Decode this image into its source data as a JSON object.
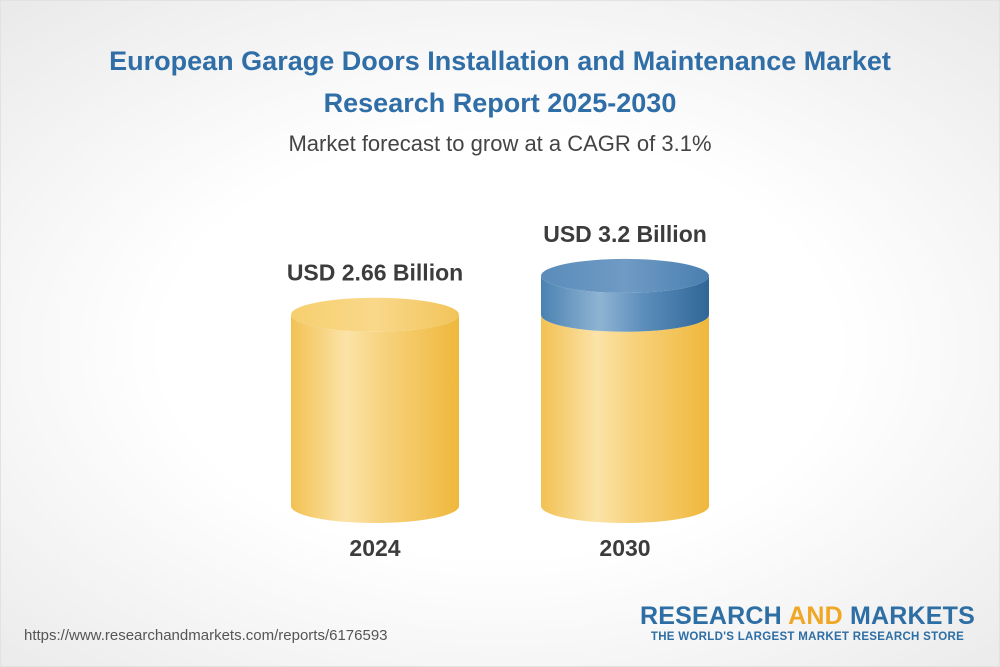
{
  "header": {
    "title_line1": "European Garage Doors Installation and Maintenance Market",
    "title_line2": "Research Report 2025-2030",
    "subtitle": "Market forecast to grow at a CAGR of 3.1%"
  },
  "chart_data": {
    "type": "bar",
    "style": "3d-cylinder",
    "categories": [
      "2024",
      "2030"
    ],
    "values": [
      2.66,
      3.2
    ],
    "unit": "USD Billion",
    "value_labels": [
      "USD 2.66 Billion",
      "USD 3.2 Billion"
    ],
    "growth_segment_color": "#3f79a8",
    "base_color": "#f5c860",
    "cagr": "3.1%"
  },
  "footer": {
    "url": "https://www.researchandmarkets.com/reports/6176593",
    "logo_part1": "RESEARCH ",
    "logo_part2": "AND",
    "logo_part3": " MARKETS",
    "tagline": "THE WORLD'S LARGEST MARKET RESEARCH STORE"
  }
}
